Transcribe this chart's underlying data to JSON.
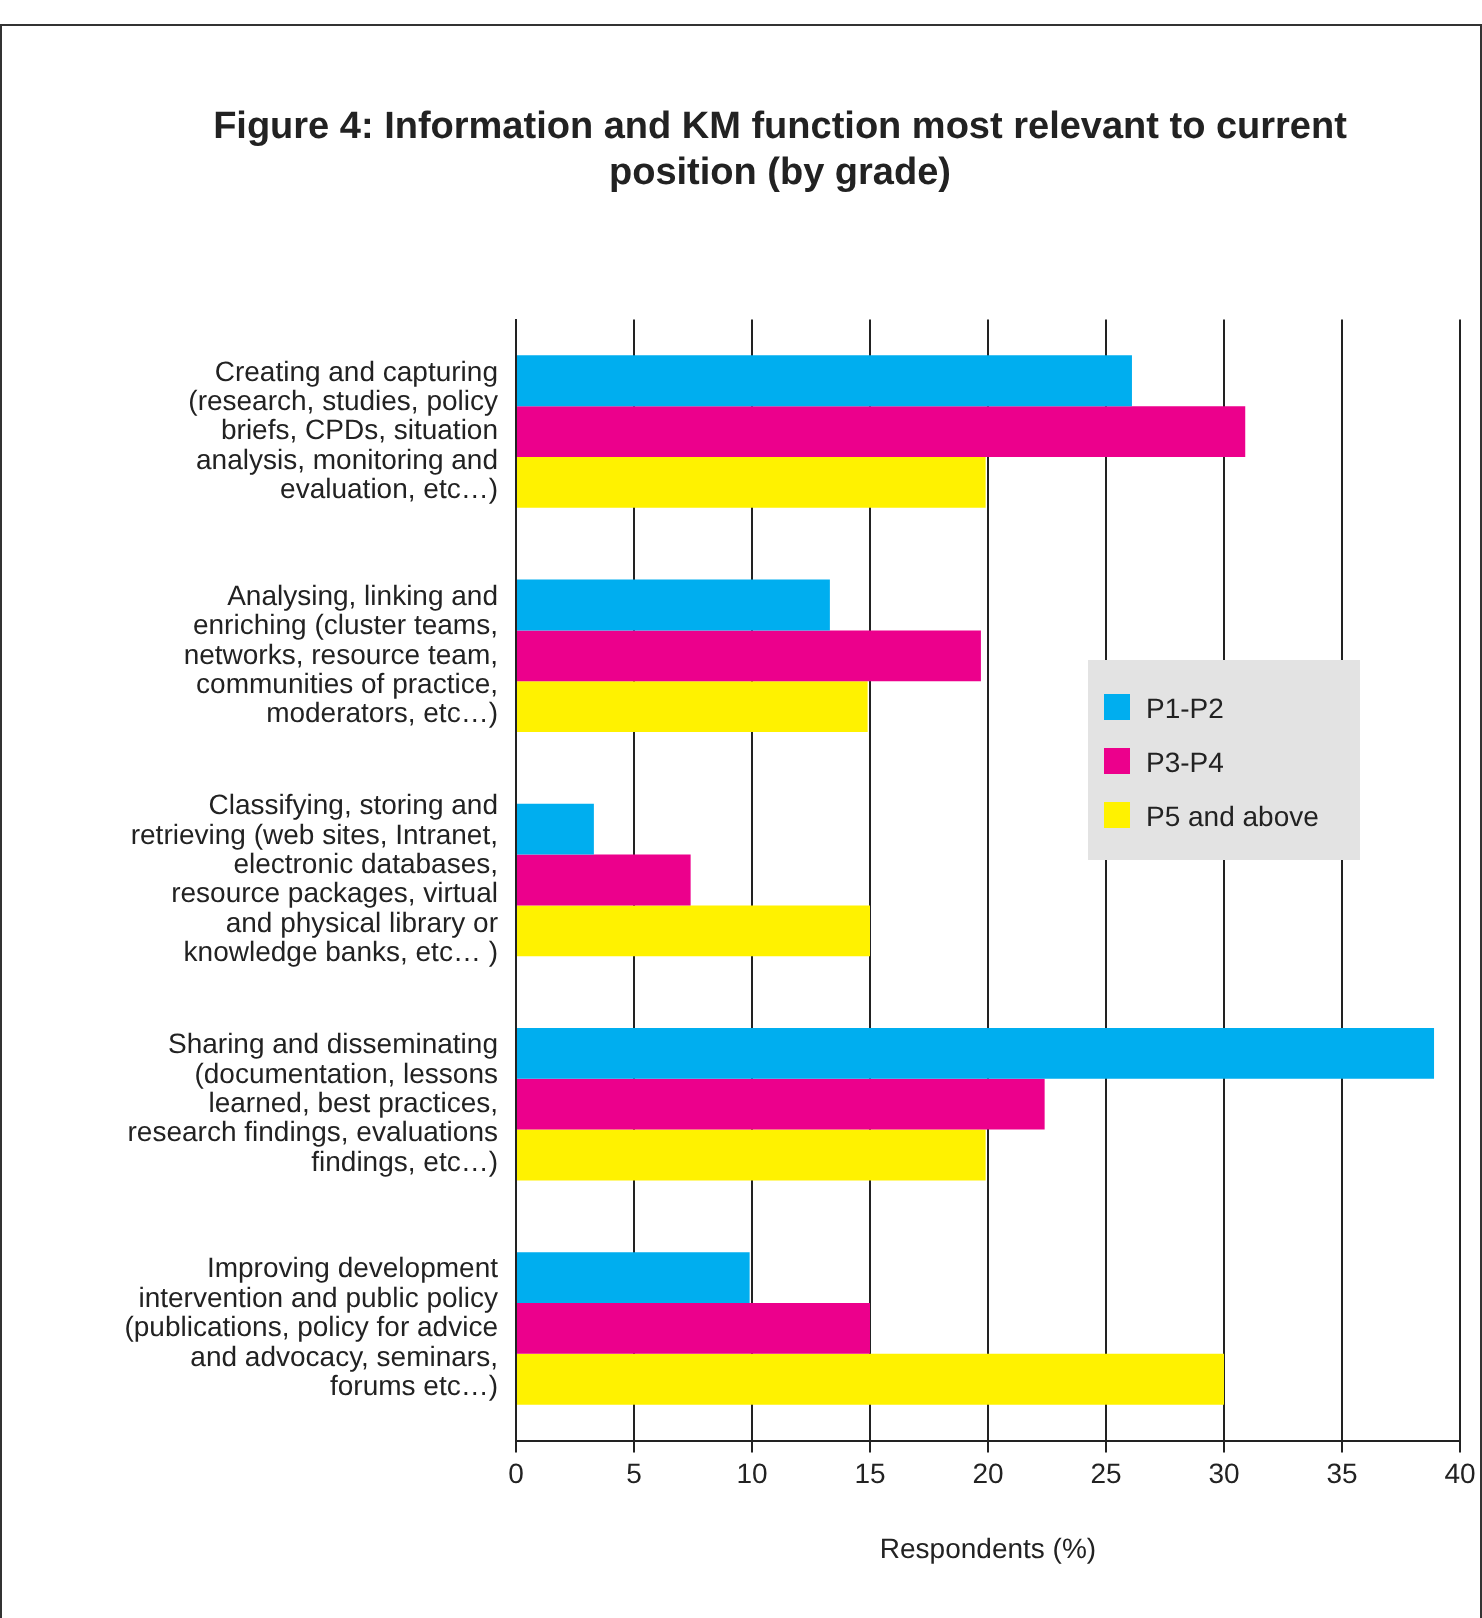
{
  "chart_data": {
    "type": "bar",
    "orientation": "horizontal",
    "title": "Figure 4: Information and KM function most relevant to current position (by grade)",
    "xlabel": "Respondents (%)",
    "categories": [
      "Creating and capturing (research, studies, policy briefs, CPDs, situation analysis, monitoring and evaluation, etc…)",
      "Analysing, linking and enriching (cluster teams, networks, resource team, communities of practice, moderators, etc…)",
      "Classifying, storing and retrieving (web sites, Intranet, electronic databases, resource packages, virtual and physical library or knowledge banks, etc… )",
      "Sharing and disseminating (documentation, lessons learned, best practices, research findings, evaluations findings, etc…)",
      "Improving development intervention and public policy (publications, policy for advice and advocacy, seminars, forums etc…)"
    ],
    "series": [
      {
        "name": "P1-P2",
        "color": "#00aeef",
        "values": [
          26.1,
          13.3,
          3.3,
          38.9,
          9.9
        ]
      },
      {
        "name": "P3-P4",
        "color": "#ec008c",
        "values": [
          30.9,
          19.7,
          7.4,
          22.4,
          15
        ]
      },
      {
        "name": "P5 and above",
        "color": "#fff200",
        "values": [
          19.9,
          14.9,
          15,
          19.9,
          30
        ]
      }
    ],
    "xlim": [
      0,
      40
    ],
    "xticks": [
      0,
      5,
      10,
      15,
      20,
      25,
      30,
      35,
      40
    ],
    "grid": "x",
    "legend": "right"
  }
}
